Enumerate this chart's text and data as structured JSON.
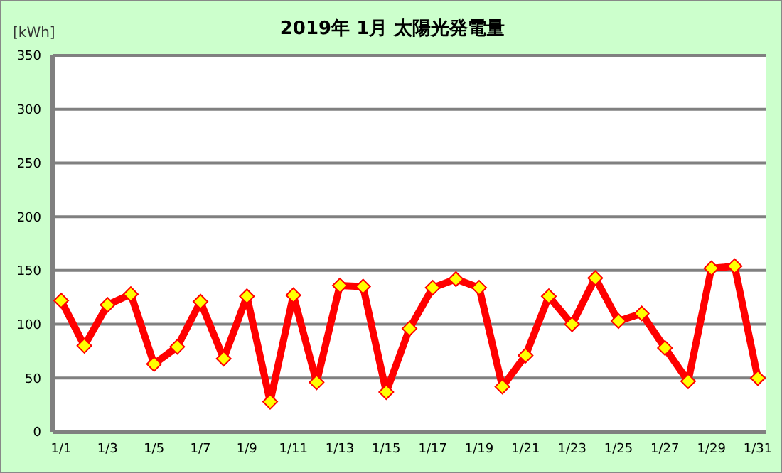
{
  "chart_data": {
    "type": "line",
    "title": "2019年 1月  太陽光発電量",
    "ylabel": "[kWh]",
    "categories": [
      "1/1",
      null,
      "1/3",
      null,
      "1/5",
      null,
      "1/7",
      null,
      "1/9",
      null,
      "1/11",
      null,
      "1/13",
      null,
      "1/15",
      null,
      "1/17",
      null,
      "1/19",
      null,
      "1/21",
      null,
      "1/23",
      null,
      "1/25",
      null,
      "1/27",
      null,
      "1/29",
      null,
      "1/31"
    ],
    "series": [
      {
        "color": "#ff0000",
        "values": [
          122,
          80,
          118,
          128,
          63,
          79,
          121,
          68,
          126,
          28,
          127,
          46,
          136,
          135,
          37,
          96,
          134,
          142,
          134,
          42,
          71,
          126,
          100,
          143,
          103,
          110,
          78,
          47,
          152,
          154,
          50
        ]
      }
    ],
    "ylim": [
      0,
      350
    ],
    "yticks": [
      0,
      50,
      100,
      150,
      200,
      250,
      300,
      350
    ],
    "grid": "y",
    "marker": "diamond",
    "line_style": "solid"
  }
}
